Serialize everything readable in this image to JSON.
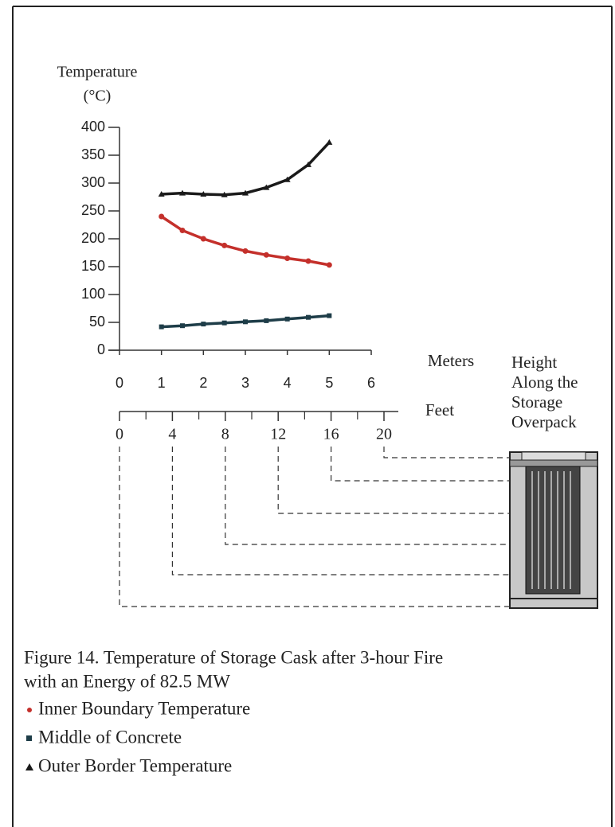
{
  "chart_data": {
    "type": "line",
    "title_lines": [
      "Figure 14.  Temperature of Storage Cask after 3-hour Fire",
      "with an Energy of 82.5 MW"
    ],
    "y_label_lines": [
      "Temperature",
      "(°C)"
    ],
    "x_label": "Meters",
    "x2_label": "Feet",
    "side_label_lines": [
      "Height",
      "Along the",
      "Storage",
      "Overpack"
    ],
    "x": [
      1,
      1.5,
      2,
      2.5,
      3,
      3.5,
      4,
      4.5,
      5
    ],
    "series": [
      {
        "name": "Inner Boundary Temperature",
        "color": "#c4302b",
        "marker": "circle",
        "values": [
          240,
          215,
          200,
          188,
          178,
          171,
          165,
          160,
          153
        ]
      },
      {
        "name": "Middle of Concrete",
        "color": "#1e3d48",
        "marker": "square",
        "values": [
          42,
          44,
          47,
          49,
          51,
          53,
          56,
          59,
          62
        ]
      },
      {
        "name": "Outer Border Temperature",
        "color": "#1a1a1a",
        "marker": "triangle",
        "values": [
          280,
          282,
          280,
          279,
          282,
          292,
          306,
          333,
          373
        ]
      }
    ],
    "xlim": [
      0,
      6
    ],
    "xticks": [
      0,
      1,
      2,
      3,
      4,
      5,
      6
    ],
    "ylim": [
      0,
      400
    ],
    "yticks": [
      0,
      50,
      100,
      150,
      200,
      250,
      300,
      350,
      400
    ],
    "x2lim": [
      0,
      20
    ],
    "x2ticks": [
      0,
      4,
      8,
      12,
      16,
      20
    ]
  }
}
